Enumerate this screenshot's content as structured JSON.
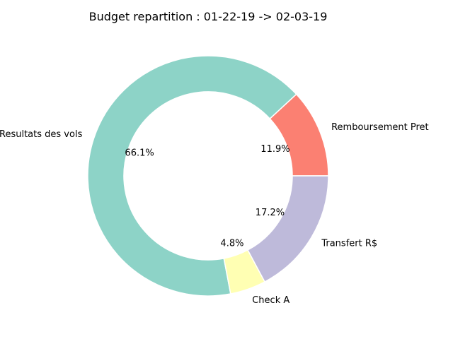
{
  "chart_data": {
    "type": "pie",
    "title": "Budget repartition : 01-22-19 -> 02-03-19",
    "categories": [
      "Remboursement Pret",
      "Resultats des vols",
      "Check A",
      "Transfert R$"
    ],
    "values": [
      11.9,
      66.1,
      4.8,
      17.2
    ],
    "value_labels": [
      "11.9%",
      "66.1%",
      "4.8%",
      "17.2%"
    ],
    "colors": [
      "#fb8072",
      "#8dd3c7",
      "#ffffb3",
      "#bebada"
    ],
    "donut": true,
    "start_angle_deg": 0,
    "direction": "counterclockwise",
    "slice_edge_color": "#ffffff",
    "legend": "none"
  }
}
